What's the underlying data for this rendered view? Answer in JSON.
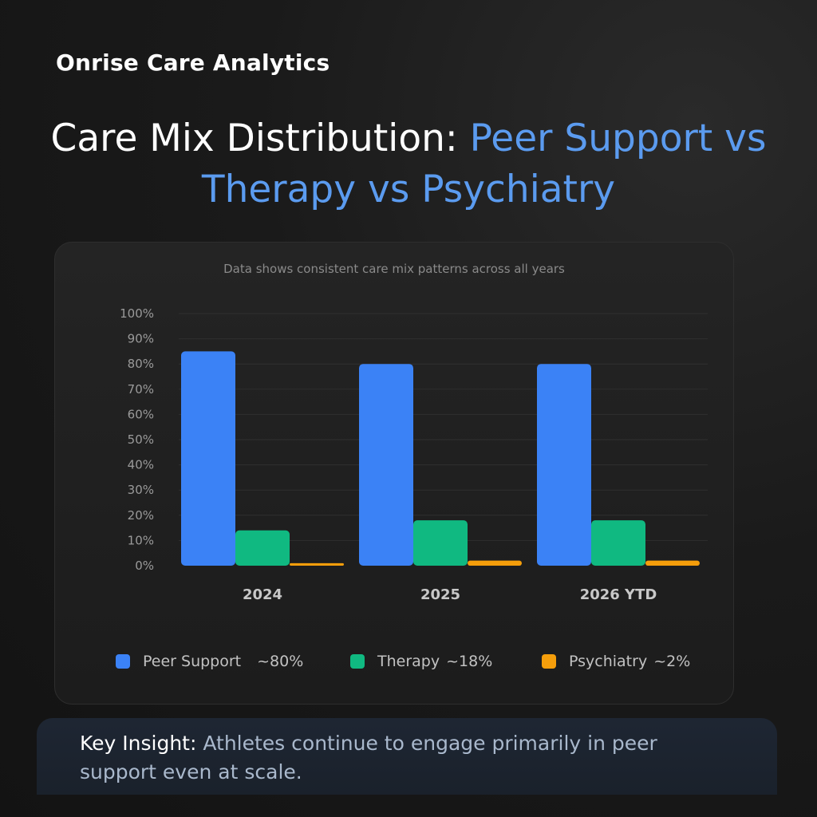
{
  "brand": "Onrise Care Analytics",
  "headline": {
    "lead": "Care Mix Distribution: ",
    "accent": "Peer Support vs Therapy vs Psychiatry"
  },
  "chart_data": {
    "type": "bar",
    "subtitle": "Data shows consistent care mix patterns across all years",
    "categories": [
      "2024",
      "2025",
      "2026 YTD"
    ],
    "series": [
      {
        "name": "Peer Support",
        "values": [
          85,
          80,
          80
        ],
        "color": "#3b82f6"
      },
      {
        "name": "Therapy",
        "values": [
          14,
          18,
          18
        ],
        "color": "#10b981"
      },
      {
        "name": "Psychiatry",
        "values": [
          1,
          2,
          2
        ],
        "color": "#f59e0b"
      }
    ],
    "ylim": [
      0,
      100
    ],
    "yticks": [
      "0%",
      "10%",
      "20%",
      "30%",
      "40%",
      "50%",
      "60%",
      "70%",
      "80%",
      "90%",
      "100%"
    ],
    "grid": true,
    "xlabel": "",
    "ylabel": ""
  },
  "legend": [
    {
      "name": "Peer Support",
      "value": "~80%",
      "color": "#3b82f6"
    },
    {
      "name": "Therapy",
      "value": "~18%",
      "color": "#10b981"
    },
    {
      "name": "Psychiatry",
      "value": "~2%",
      "color": "#f59e0b"
    }
  ],
  "insight": {
    "label": "Key Insight:",
    "text": "Athletes continue to engage primarily in peer support even at scale."
  }
}
